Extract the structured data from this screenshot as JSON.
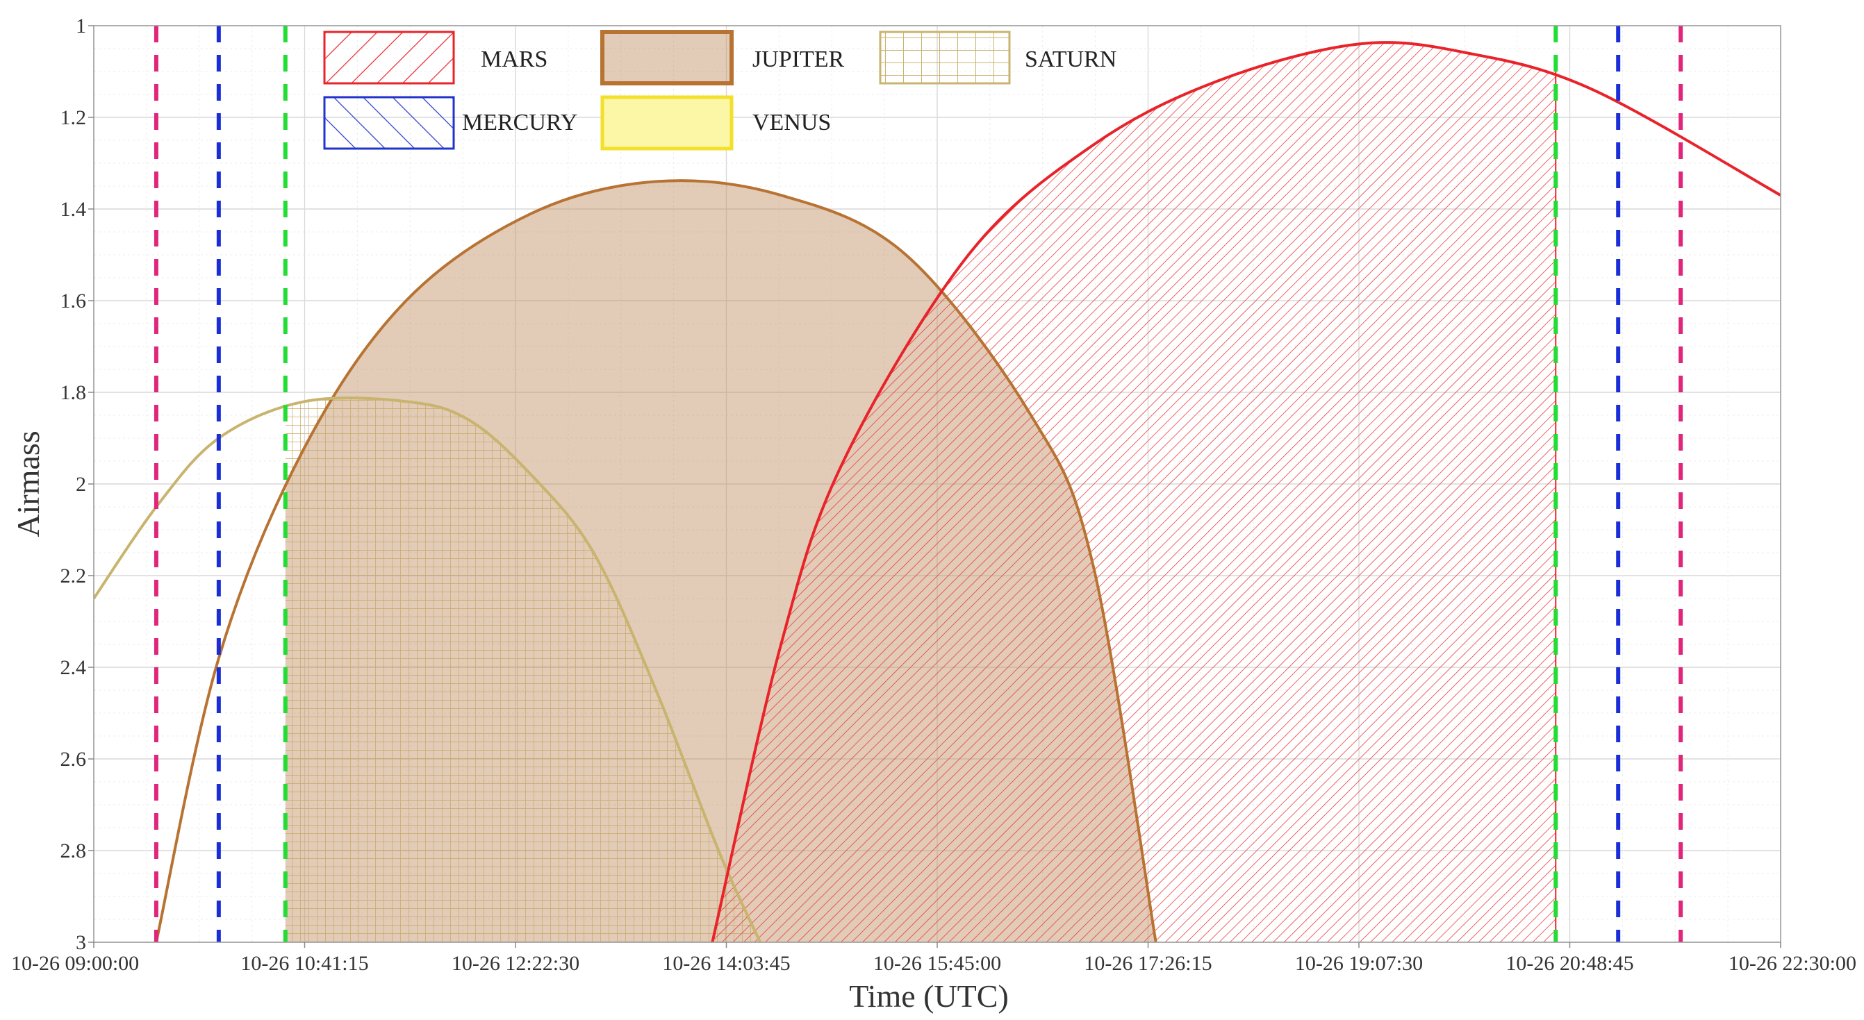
{
  "chart_data": {
    "type": "area",
    "xlabel": "Time (UTC)",
    "ylabel": "Airmass",
    "y_inverted": true,
    "ylim": [
      1,
      3
    ],
    "xlim": [
      "10-26 09:00:00",
      "10-26 22:30:00"
    ],
    "y_ticks": [
      "1",
      "1.2",
      "1.4",
      "1.6",
      "1.8",
      "2",
      "2.2",
      "2.4",
      "2.6",
      "2.8",
      "3"
    ],
    "x_ticks": [
      "10-26 09:00:00",
      "10-26 10:41:15",
      "10-26 12:22:30",
      "10-26 14:03:45",
      "10-26 15:45:00",
      "10-26 17:26:15",
      "10-26 19:07:30",
      "10-26 20:48:45",
      "10-26 22:30:00"
    ],
    "grid": true,
    "legend_position": "top",
    "series": [
      {
        "name": "MARS",
        "color": "#e8232a",
        "fill": "diagonal-hatch",
        "points": [
          [
            "10-26 13:57:00",
            3.0
          ],
          [
            "10-26 14:30:00",
            2.35
          ],
          [
            "10-26 15:00:00",
            1.95
          ],
          [
            "10-26 16:00:00",
            1.5
          ],
          [
            "10-26 17:00:00",
            1.26
          ],
          [
            "10-26 18:00:00",
            1.12
          ],
          [
            "10-26 19:07:30",
            1.04
          ],
          [
            "10-26 20:00:00",
            1.06
          ],
          [
            "10-26 21:00:00",
            1.14
          ],
          [
            "10-26 22:30:00",
            1.37
          ]
        ],
        "shaded_until": "10-26 20:42:00"
      },
      {
        "name": "JUPITER",
        "color": "#b87333",
        "fill": "solid",
        "points": [
          [
            "10-26 09:30:00",
            3.0
          ],
          [
            "10-26 10:00:00",
            2.38
          ],
          [
            "10-26 10:41:15",
            1.92
          ],
          [
            "10-26 11:30:00",
            1.6
          ],
          [
            "10-26 12:30:00",
            1.41
          ],
          [
            "10-26 13:30:00",
            1.34
          ],
          [
            "10-26 14:30:00",
            1.37
          ],
          [
            "10-26 15:30:00",
            1.5
          ],
          [
            "10-26 16:30:00",
            1.85
          ],
          [
            "10-26 17:00:00",
            2.18
          ],
          [
            "10-26 17:30:00",
            3.0
          ]
        ],
        "shaded_from": "10-26 10:32:00"
      },
      {
        "name": "SATURN",
        "color": "#c8b46e",
        "fill": "grid-hatch",
        "points": [
          [
            "10-26 09:00:00",
            2.25
          ],
          [
            "10-26 09:30:00",
            2.05
          ],
          [
            "10-26 10:00:00",
            1.9
          ],
          [
            "10-26 10:41:15",
            1.82
          ],
          [
            "10-26 11:30:00",
            1.82
          ],
          [
            "10-26 12:00:00",
            1.86
          ],
          [
            "10-26 12:30:00",
            1.98
          ],
          [
            "10-26 13:00:00",
            2.15
          ],
          [
            "10-26 13:30:00",
            2.45
          ],
          [
            "10-26 14:00:00",
            2.8
          ],
          [
            "10-26 14:20:00",
            3.0
          ]
        ],
        "shaded_from": "10-26 10:32:00"
      },
      {
        "name": "MERCURY",
        "color": "#2233cc",
        "fill": "diagonal-hatch",
        "points": []
      },
      {
        "name": "VENUS",
        "color": "#f2e02a",
        "fill": "solid",
        "points": []
      }
    ],
    "vertical_lines": [
      {
        "time": "10-26 09:30:00",
        "color": "#e0267a"
      },
      {
        "time": "10-26 10:00:00",
        "color": "#1a2ed8"
      },
      {
        "time": "10-26 10:32:00",
        "color": "#22dd33"
      },
      {
        "time": "10-26 20:42:00",
        "color": "#22dd33"
      },
      {
        "time": "10-26 21:12:00",
        "color": "#1a2ed8"
      },
      {
        "time": "10-26 21:42:00",
        "color": "#e0267a"
      }
    ]
  }
}
